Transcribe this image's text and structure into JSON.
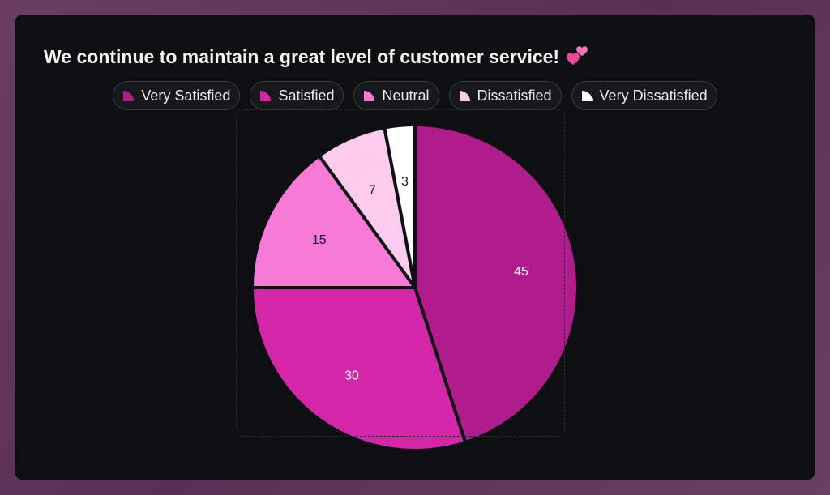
{
  "title": "We continue to maintain a great level of customer service!",
  "title_icon": "two-hearts-emoji",
  "chart_data": {
    "type": "pie",
    "title": "We continue to maintain a great level of customer service!",
    "legend_position": "top",
    "start_angle": "12 o'clock, clockwise",
    "series": [
      {
        "name": "Very Satisfied",
        "value": 45,
        "color": "#b01c8c",
        "label_color": "#ffffff"
      },
      {
        "name": "Satisfied",
        "value": 30,
        "color": "#d426a9",
        "label_color": "#ffffff"
      },
      {
        "name": "Neutral",
        "value": 15,
        "color": "#f77ad9",
        "label_color": "#1a1a1a"
      },
      {
        "name": "Dissatisfied",
        "value": 7,
        "color": "#fccbee",
        "label_color": "#1a1a1a"
      },
      {
        "name": "Very Dissatisfied",
        "value": 3,
        "color": "#ffffff",
        "label_color": "#1a1a1a"
      }
    ]
  }
}
